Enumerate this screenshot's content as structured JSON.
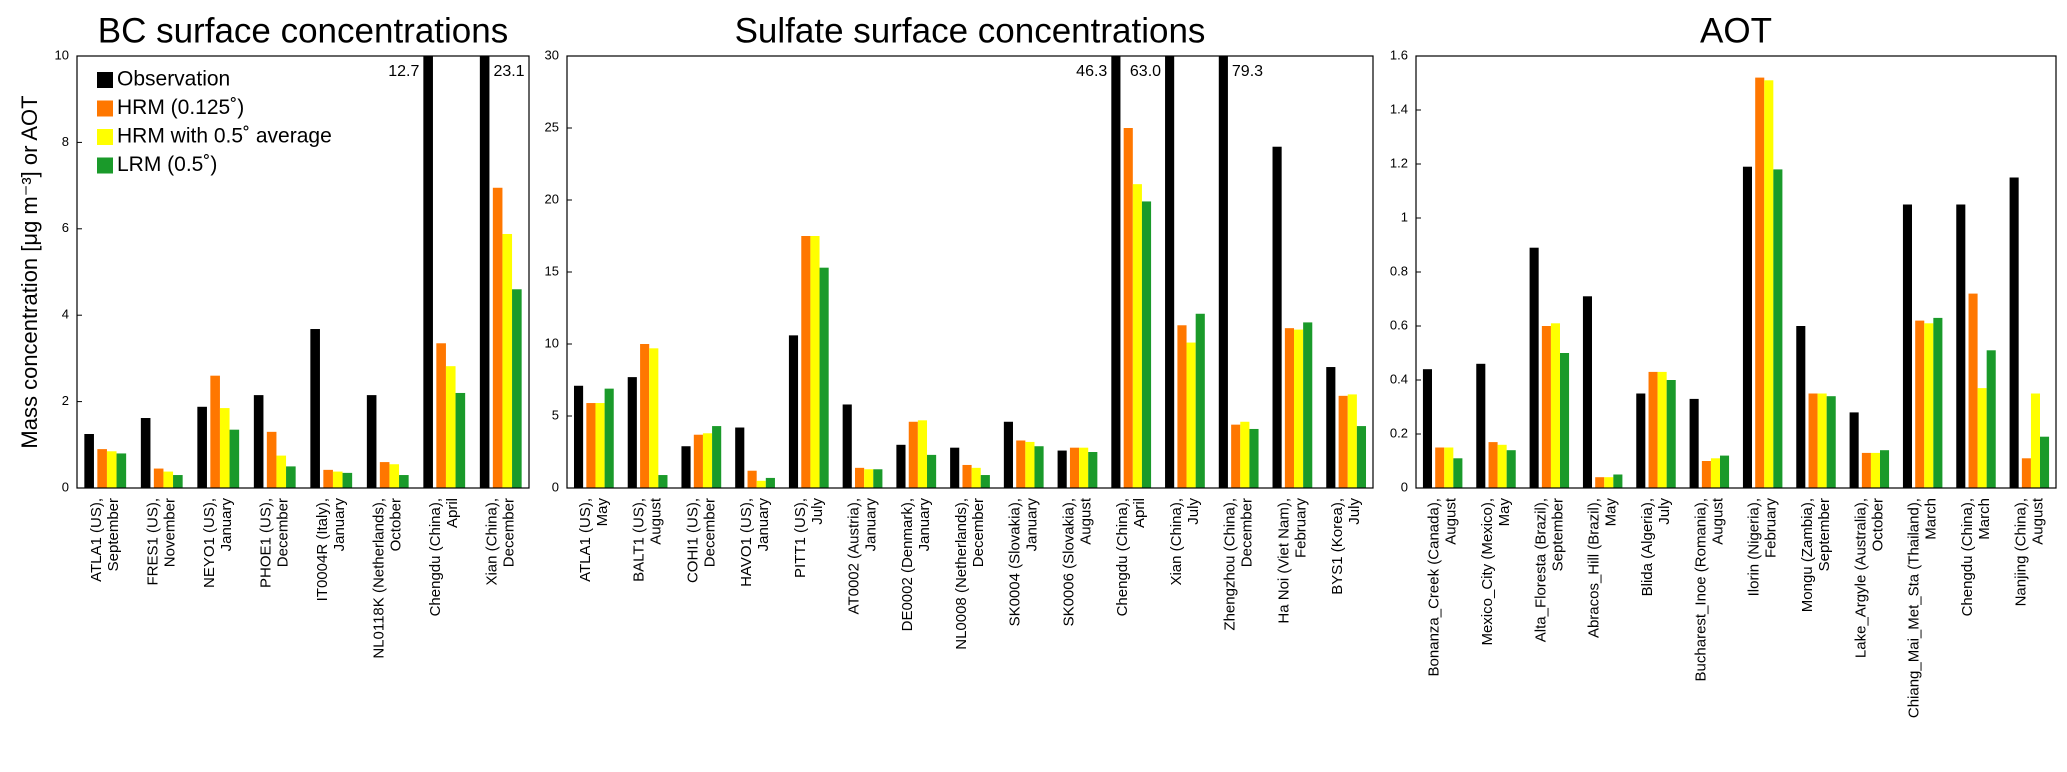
{
  "chart_data": [
    {
      "type": "bar",
      "title": "BC surface concentrations",
      "ylabel": "Mass concentration [μg m⁻³] or AOT",
      "categories": [
        [
          "ATLA1 (US),",
          "September"
        ],
        [
          "FRES1 (US),",
          "November"
        ],
        [
          "NEYO1 (US),",
          "January"
        ],
        [
          "PHOE1 (US),",
          "December"
        ],
        [
          "IT0004R (Italy),",
          "January"
        ],
        [
          "NL0118K (Netherlands),",
          "October"
        ],
        [
          "Chengdu (China),",
          "April"
        ],
        [
          "Xian (China),",
          "December"
        ]
      ],
      "ylim": [
        0,
        10
      ],
      "yticks": [
        0,
        2,
        4,
        6,
        8,
        10
      ],
      "legend": "upper left",
      "series": [
        {
          "name": "Observation",
          "color": "#000000",
          "values": [
            1.25,
            1.62,
            1.88,
            2.15,
            3.68,
            2.15,
            12.7,
            23.1
          ],
          "value_labels": [
            null,
            null,
            null,
            null,
            null,
            null,
            "12.7",
            "23.1"
          ]
        },
        {
          "name": "HRM (0.125˚)",
          "color": "#ff7700",
          "values": [
            0.9,
            0.45,
            2.6,
            1.3,
            0.42,
            0.6,
            3.35,
            6.95
          ]
        },
        {
          "name": "HRM with 0.5˚ average",
          "color": "#ffff00",
          "values": [
            0.85,
            0.38,
            1.85,
            0.75,
            0.38,
            0.55,
            2.82,
            5.88
          ]
        },
        {
          "name": "LRM (0.5˚)",
          "color": "#1a9a2a",
          "values": [
            0.8,
            0.3,
            1.35,
            0.5,
            0.35,
            0.3,
            2.2,
            4.6
          ]
        }
      ]
    },
    {
      "type": "bar",
      "title": "Sulfate surface concentrations",
      "categories": [
        [
          "ATLA1 (US),",
          "May"
        ],
        [
          "BALT1 (US),",
          "August"
        ],
        [
          "COHI1 (US),",
          "December"
        ],
        [
          "HAVO1 (US),",
          "January"
        ],
        [
          "PITT1 (US),",
          "July"
        ],
        [
          "AT0002 (Austria),",
          "January"
        ],
        [
          "DE0002 (Denmark),",
          "January"
        ],
        [
          "NL0008 (Netherlands),",
          "December"
        ],
        [
          "SK0004 (Slovakia),",
          "January"
        ],
        [
          "SK0006 (Slovakia),",
          "August"
        ],
        [
          "Chengdu (China),",
          "April"
        ],
        [
          "Xian (China),",
          "July"
        ],
        [
          "Zhengzhou (China),",
          "December"
        ],
        [
          "Ha Noi (Viet Nam),",
          "February"
        ],
        [
          "BYS1 (Korea),",
          "July"
        ]
      ],
      "ylim": [
        0,
        30
      ],
      "yticks": [
        0,
        5,
        10,
        15,
        20,
        25,
        30
      ],
      "series": [
        {
          "color": "#000000",
          "values": [
            7.1,
            7.7,
            2.9,
            4.2,
            10.6,
            5.8,
            3.0,
            2.8,
            4.6,
            2.6,
            46.3,
            63.0,
            79.3,
            23.7,
            8.4
          ],
          "value_labels": [
            null,
            null,
            null,
            null,
            null,
            null,
            null,
            null,
            null,
            null,
            "46.3",
            "63.0",
            "79.3",
            null,
            null
          ]
        },
        {
          "color": "#ff7700",
          "values": [
            5.9,
            10.0,
            3.7,
            1.2,
            17.5,
            1.4,
            4.6,
            1.6,
            3.3,
            2.8,
            25.0,
            11.3,
            4.4,
            11.1,
            6.4
          ]
        },
        {
          "color": "#ffff00",
          "values": [
            5.9,
            9.7,
            3.8,
            0.5,
            17.5,
            1.3,
            4.7,
            1.4,
            3.2,
            2.8,
            21.1,
            10.1,
            4.6,
            11.0,
            6.5
          ]
        },
        {
          "color": "#1a9a2a",
          "values": [
            6.9,
            0.9,
            4.3,
            0.7,
            15.3,
            1.3,
            2.3,
            0.9,
            2.9,
            2.5,
            19.9,
            12.1,
            4.1,
            11.5,
            4.3
          ]
        }
      ]
    },
    {
      "type": "bar",
      "title": "AOT",
      "categories": [
        [
          "Bonanza_Creek (Canada),",
          "August"
        ],
        [
          "Mexico_City (Mexico),",
          "May"
        ],
        [
          "Alta_Floresta (Brazil),",
          "September"
        ],
        [
          "Abracos_Hill (Brazil),",
          "May"
        ],
        [
          "Blida (Algeria),",
          "July"
        ],
        [
          "Bucharest_Inoe (Romania),",
          "August"
        ],
        [
          "Ilorin (Nigeria),",
          "February"
        ],
        [
          "Mongu (Zambia),",
          "September"
        ],
        [
          "Lake_Argyle (Australia),",
          "October"
        ],
        [
          "Chiang_Mai_Met_Sta (Thailand),",
          "March"
        ],
        [
          "Chengdu (China),",
          "March"
        ],
        [
          "Nanjing (China),",
          "August"
        ]
      ],
      "ylim": [
        0,
        1.6
      ],
      "yticks": [
        0,
        0.2,
        0.4,
        0.6,
        0.8,
        1,
        1.2,
        1.4,
        1.6
      ],
      "series": [
        {
          "color": "#000000",
          "values": [
            0.44,
            0.46,
            0.89,
            0.71,
            0.35,
            0.33,
            1.19,
            0.6,
            0.28,
            1.05,
            1.05,
            1.15
          ]
        },
        {
          "color": "#ff7700",
          "values": [
            0.15,
            0.17,
            0.6,
            0.04,
            0.43,
            0.1,
            1.52,
            0.35,
            0.13,
            0.62,
            0.72,
            0.11
          ]
        },
        {
          "color": "#ffff00",
          "values": [
            0.15,
            0.16,
            0.61,
            0.04,
            0.43,
            0.11,
            1.51,
            0.35,
            0.13,
            0.61,
            0.37,
            0.35
          ]
        },
        {
          "color": "#1a9a2a",
          "values": [
            0.11,
            0.14,
            0.5,
            0.05,
            0.4,
            0.12,
            1.18,
            0.34,
            0.14,
            0.63,
            0.51,
            0.19
          ]
        }
      ]
    }
  ]
}
